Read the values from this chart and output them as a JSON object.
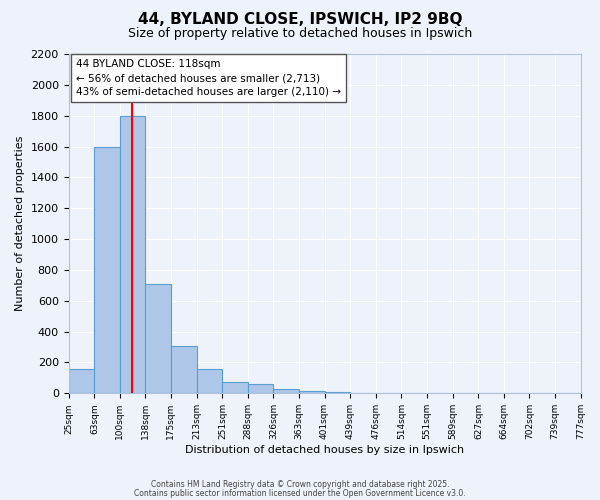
{
  "title": "44, BYLAND CLOSE, IPSWICH, IP2 9BQ",
  "subtitle": "Size of property relative to detached houses in Ipswich",
  "xlabel": "Distribution of detached houses by size in Ipswich",
  "ylabel": "Number of detached properties",
  "bar_values": [
    160,
    1600,
    1800,
    710,
    310,
    160,
    75,
    60,
    30,
    15,
    10,
    0,
    0,
    0,
    0,
    0,
    0,
    0,
    0,
    0
  ],
  "bar_edges": [
    25,
    63,
    100,
    138,
    175,
    213,
    251,
    288,
    326,
    363,
    401,
    439,
    476,
    514,
    551,
    589,
    627,
    664,
    702,
    739,
    777
  ],
  "x_labels": [
    "25sqm",
    "63sqm",
    "100sqm",
    "138sqm",
    "175sqm",
    "213sqm",
    "251sqm",
    "288sqm",
    "326sqm",
    "363sqm",
    "401sqm",
    "439sqm",
    "476sqm",
    "514sqm",
    "551sqm",
    "589sqm",
    "627sqm",
    "664sqm",
    "702sqm",
    "739sqm",
    "777sqm"
  ],
  "bar_color": "#aec6e8",
  "bar_edge_color": "#5a9fd4",
  "red_line_x": 118,
  "annotation_title": "44 BYLAND CLOSE: 118sqm",
  "annotation_line1": "← 56% of detached houses are smaller (2,713)",
  "annotation_line2": "43% of semi-detached houses are larger (2,110) →",
  "annotation_box_color": "#ffffff",
  "annotation_box_edge": "#555555",
  "ylim": [
    0,
    2200
  ],
  "ytick_interval": 200,
  "background_color": "#eef2fa",
  "grid_color": "#ffffff",
  "footer1": "Contains HM Land Registry data © Crown copyright and database right 2025.",
  "footer2": "Contains public sector information licensed under the Open Government Licence v3.0."
}
